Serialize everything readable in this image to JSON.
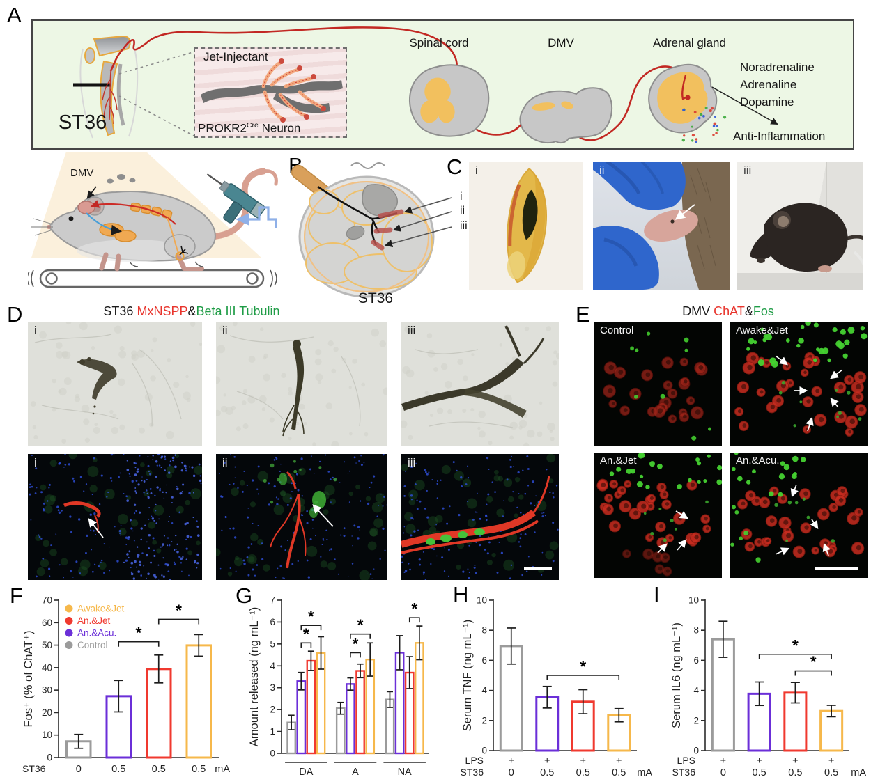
{
  "colors": {
    "awake_jet": "#F6B84B",
    "an_jet": "#F0392F",
    "an_acu": "#6B2FD8",
    "control": "#9B9B9B"
  },
  "panel_a": {
    "letter": "A",
    "st36": "ST36",
    "inset_title": "Jet-Injectant",
    "neuron_label_base": "PROKR2",
    "neuron_label_sup": "Cre",
    "neuron_label_rest": " Neuron",
    "spinal_cord": "Spinal cord",
    "dmv": "DMV",
    "adrenal_gland": "Adrenal gland",
    "hormones": [
      "Noradrenaline",
      "Adrenaline",
      "Dopamine"
    ],
    "anti_inflammation": "Anti-Inflammation",
    "mouse_dmv": "DMV"
  },
  "panel_b": {
    "letter": "B",
    "st36": "ST36",
    "markers": [
      "i",
      "ii",
      "iii"
    ]
  },
  "panel_c": {
    "letter": "C",
    "markers": [
      "i",
      "ii",
      "iii"
    ]
  },
  "panel_d": {
    "letter": "D",
    "title": {
      "t1": "ST36 ",
      "t2": "MxNSPP",
      "t3": "&",
      "t4": "Beta III Tubulin"
    },
    "markers": [
      "i",
      "ii",
      "iii"
    ]
  },
  "panel_e": {
    "letter": "E",
    "title": {
      "t1": "DMV ",
      "t2": "ChAT",
      "t3": "&",
      "t4": "Fos"
    },
    "images": [
      "Control",
      "Awake&Jet",
      "An.&Jet",
      "An.&Acu."
    ]
  },
  "chart_data": [
    {
      "panel": "F",
      "type": "bar",
      "ylabel": "Fos⁺ (% of ChAT⁺)",
      "ylim": [
        0,
        70
      ],
      "yticks": [
        0,
        10,
        20,
        30,
        40,
        50,
        60,
        70
      ],
      "series": [
        {
          "name": "Control",
          "color": "control",
          "value": 7.2,
          "err": 3.1
        },
        {
          "name": "An.&Acu.",
          "color": "an_acu",
          "value": 27.3,
          "err": 7.0
        },
        {
          "name": "An.&Jet",
          "color": "an_jet",
          "value": 39.4,
          "err": 6.2
        },
        {
          "name": "Awake&Jet",
          "color": "awake_jet",
          "value": 49.9,
          "err": 4.8
        }
      ],
      "xticklabels": [
        "0",
        "0.5",
        "0.5",
        "0.5"
      ],
      "x_prefix": "ST36",
      "x_suffix": "mA",
      "legend": [
        {
          "label": "Awake&Jet",
          "color": "awake_jet"
        },
        {
          "label": "An.&Jet",
          "color": "an_jet"
        },
        {
          "label": "An.&Acu.",
          "color": "an_acu"
        },
        {
          "label": "Control",
          "color": "control"
        }
      ],
      "brackets": [
        {
          "from": 1,
          "to": 2,
          "y": 51.5,
          "label": "*"
        },
        {
          "from": 2,
          "to": 3,
          "y": 61.5,
          "label": "*"
        }
      ]
    },
    {
      "panel": "G",
      "type": "bar",
      "ylabel": "Amount released (ng mL⁻¹)",
      "ylim": [
        0,
        7
      ],
      "yticks": [
        0,
        1,
        2,
        3,
        4,
        5,
        6,
        7
      ],
      "groups": [
        "DA",
        "A",
        "NA"
      ],
      "series": [
        {
          "name": "Control",
          "color": "control",
          "values": [
            1.41,
            2.06,
            2.46
          ],
          "errs": [
            0.33,
            0.27,
            0.36
          ]
        },
        {
          "name": "An.&Acu.",
          "color": "an_acu",
          "values": [
            3.3,
            3.17,
            4.6
          ],
          "errs": [
            0.4,
            0.28,
            0.78
          ]
        },
        {
          "name": "An.&Jet",
          "color": "an_jet",
          "values": [
            4.23,
            3.77,
            3.69
          ],
          "errs": [
            0.44,
            0.31,
            0.73
          ]
        },
        {
          "name": "Awake&Jet",
          "color": "awake_jet",
          "values": [
            4.59,
            4.29,
            5.05
          ],
          "errs": [
            0.74,
            0.76,
            0.77
          ]
        }
      ],
      "brackets": [
        {
          "group": 0,
          "from": 1,
          "to": 2,
          "y": 5.05,
          "label": "*"
        },
        {
          "group": 0,
          "from": 1,
          "to": 3,
          "y": 5.85,
          "label": "*"
        },
        {
          "group": 1,
          "from": 1,
          "to": 2,
          "y": 4.6,
          "label": "*"
        },
        {
          "group": 1,
          "from": 1,
          "to": 3,
          "y": 5.45,
          "label": "*"
        },
        {
          "group": 2,
          "from": 2,
          "to": 3,
          "y": 6.2,
          "label": "*"
        }
      ]
    },
    {
      "panel": "H",
      "type": "bar",
      "ylabel": "Serum TNF (ng mL⁻¹)",
      "ylim": [
        0,
        10
      ],
      "yticks": [
        0,
        2,
        4,
        6,
        8,
        10
      ],
      "series": [
        {
          "name": "Control",
          "color": "control",
          "value": 6.95,
          "err": 1.2
        },
        {
          "name": "An.&Acu.",
          "color": "an_acu",
          "value": 3.55,
          "err": 0.72
        },
        {
          "name": "An.&Jet",
          "color": "an_jet",
          "value": 3.25,
          "err": 0.8
        },
        {
          "name": "Awake&Jet",
          "color": "awake_jet",
          "value": 2.35,
          "err": 0.44
        }
      ],
      "xrows": [
        {
          "prefix": "LPS",
          "labels": [
            "+",
            "+",
            "+",
            "+"
          ],
          "suffix": ""
        },
        {
          "prefix": "ST36",
          "labels": [
            "0",
            "0.5",
            "0.5",
            "0.5"
          ],
          "suffix": "mA"
        }
      ],
      "brackets": [
        {
          "from": 1,
          "to": 3,
          "y": 5.0,
          "label": "*"
        }
      ]
    },
    {
      "panel": "I",
      "type": "bar",
      "ylabel": "Serum IL6 (ng mL⁻¹)",
      "ylim": [
        0,
        10
      ],
      "yticks": [
        0,
        2,
        4,
        6,
        8,
        10
      ],
      "series": [
        {
          "name": "Control",
          "color": "control",
          "value": 7.4,
          "err": 1.2
        },
        {
          "name": "An.&Acu.",
          "color": "an_acu",
          "value": 3.78,
          "err": 0.78
        },
        {
          "name": "An.&Jet",
          "color": "an_jet",
          "value": 3.85,
          "err": 0.68
        },
        {
          "name": "Awake&Jet",
          "color": "awake_jet",
          "value": 2.63,
          "err": 0.38
        }
      ],
      "xrows": [
        {
          "prefix": "LPS",
          "labels": [
            "+",
            "+",
            "+",
            "+"
          ],
          "suffix": ""
        },
        {
          "prefix": "ST36",
          "labels": [
            "0",
            "0.5",
            "0.5",
            "0.5"
          ],
          "suffix": "mA"
        }
      ],
      "brackets": [
        {
          "from": 1,
          "to": 3,
          "y": 6.4,
          "label": "*"
        },
        {
          "from": 2,
          "to": 3,
          "y": 5.3,
          "label": "*"
        }
      ]
    }
  ]
}
